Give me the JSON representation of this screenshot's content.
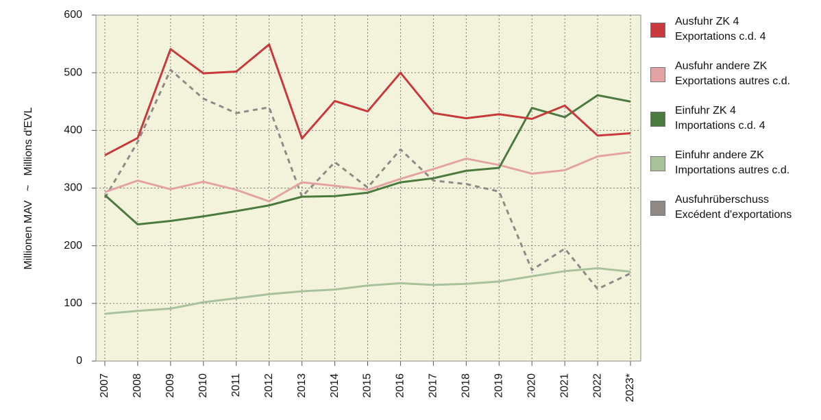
{
  "chart_data": {
    "type": "line",
    "y_label": "Millionen MAV   ~   Millions d'EVL",
    "categories": [
      "2007",
      "2008",
      "2009",
      "2010",
      "2011",
      "2012",
      "2013",
      "2014",
      "2015",
      "2016",
      "2017",
      "2018",
      "2019",
      "2020",
      "2021",
      "2022",
      "2023*"
    ],
    "series": [
      {
        "name": "Ausfuhr ZK 4\nExportations c.d. 4",
        "color": "#c8393b",
        "dash": false,
        "values": [
          357,
          387,
          541,
          499,
          502,
          549,
          386,
          451,
          433,
          500,
          430,
          421,
          428,
          420,
          443,
          391,
          395
        ]
      },
      {
        "name": "Ausfuhr andere ZK\nExportations autres c.d.",
        "color": "#e3a3a3",
        "dash": false,
        "values": [
          293,
          313,
          298,
          311,
          297,
          277,
          310,
          304,
          297,
          316,
          333,
          351,
          340,
          325,
          331,
          355,
          362
        ]
      },
      {
        "name": "Einfuhr ZK 4\nImportations c.d. 4",
        "color": "#4a7a3e",
        "dash": false,
        "values": [
          288,
          237,
          243,
          251,
          260,
          270,
          285,
          286,
          292,
          310,
          317,
          330,
          335,
          439,
          423,
          461,
          450
        ]
      },
      {
        "name": "Einfuhr andere ZK\nImportations autres c.d.",
        "color": "#a9c29b",
        "dash": false,
        "values": [
          82,
          87,
          91,
          102,
          109,
          116,
          121,
          124,
          131,
          135,
          132,
          134,
          138,
          147,
          156,
          161,
          155
        ]
      },
      {
        "name": "Ausfuhrüberschuss\nExcédent d'exportations",
        "color": "#8f8a86",
        "dash": true,
        "values": [
          283,
          380,
          505,
          455,
          430,
          440,
          285,
          345,
          301,
          367,
          313,
          307,
          294,
          158,
          195,
          125,
          152
        ]
      }
    ],
    "ylim": [
      0,
      600
    ],
    "yticks": [
      0,
      100,
      200,
      300,
      400,
      500,
      600
    ],
    "grid": true
  }
}
